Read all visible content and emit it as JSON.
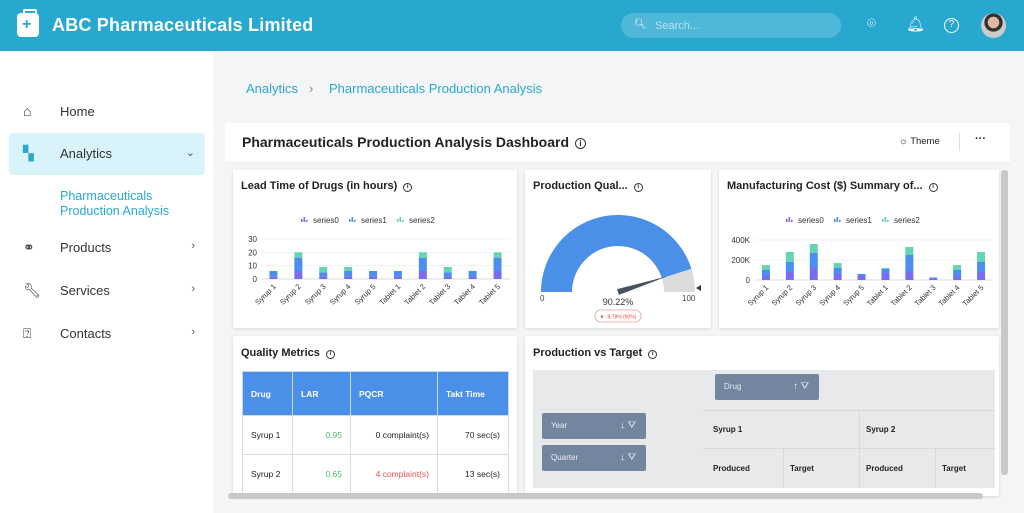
{
  "header": {
    "title": "ABC Pharmaceuticals Limited",
    "search_placeholder": "Search...",
    "icons": [
      "location-icon",
      "bell-icon",
      "help-icon"
    ],
    "brand_color": "#29a8cf"
  },
  "sidebar": {
    "items": [
      {
        "label": "Home",
        "icon": "home-icon"
      },
      {
        "label": "Analytics",
        "icon": "dashboard-icon",
        "active": true,
        "expanded": true,
        "sub": "Pharmaceuticals Production Analysis"
      },
      {
        "label": "Products",
        "icon": "pills-icon"
      },
      {
        "label": "Services",
        "icon": "wrench-icon"
      },
      {
        "label": "Contacts",
        "icon": "question-bubble-icon"
      }
    ]
  },
  "breadcrumb": [
    "Analytics",
    "Pharmaceuticals Production Analysis"
  ],
  "dashboard": {
    "title": "Pharmaceuticals Production Analysis Dashboard",
    "theme_label": "Theme",
    "more_label": "···"
  },
  "series_colors": [
    "#7a6cf0",
    "#4b8ef0",
    "#63d4b6"
  ],
  "chart_data": [
    {
      "type": "bar",
      "stacked": true,
      "title": "Lead Time of Drugs (in hours)",
      "categories": [
        "Syrup 1",
        "Syrup 2",
        "Syrup 3",
        "Syrup 4",
        "Syrup 5",
        "Tablet 1",
        "Tablet 2",
        "Tablet 3",
        "Tablet 4",
        "Tablet 5"
      ],
      "series": [
        {
          "name": "series0",
          "values": [
            2,
            6,
            2,
            2,
            2,
            2,
            6,
            2,
            2,
            6
          ]
        },
        {
          "name": "series1",
          "values": [
            4,
            10,
            3,
            4,
            4,
            4,
            10,
            3,
            4,
            10
          ]
        },
        {
          "name": "series2",
          "values": [
            0,
            4,
            4,
            3,
            0,
            0,
            4,
            4,
            0,
            4
          ]
        }
      ],
      "yticks": [
        "0",
        "10",
        "20",
        "30"
      ],
      "ylim": [
        0,
        30
      ],
      "legend": "top"
    },
    {
      "type": "gauge",
      "title": "Production Qual...",
      "value": 90.22,
      "value_label": "90.22%",
      "min_label": "0",
      "max_label": "100",
      "delta_label": "▼ -9.78% (90%)"
    },
    {
      "type": "bar",
      "stacked": true,
      "title": "Manufacturing Cost ($) Summary of...",
      "categories": [
        "Syrup 1",
        "Syrup 2",
        "Syrup 3",
        "Syrup 4",
        "Syrup 5",
        "Tablet 1",
        "Tablet 2",
        "Tablet 3",
        "Tablet 4",
        "Tablet 5"
      ],
      "series": [
        {
          "name": "series0",
          "values": [
            40000,
            80000,
            120000,
            60000,
            40000,
            70000,
            90000,
            10000,
            40000,
            80000
          ]
        },
        {
          "name": "series1",
          "values": [
            60000,
            100000,
            150000,
            60000,
            20000,
            40000,
            160000,
            15000,
            60000,
            100000
          ]
        },
        {
          "name": "series2",
          "values": [
            50000,
            100000,
            90000,
            50000,
            0,
            10000,
            80000,
            0,
            50000,
            100000
          ]
        }
      ],
      "yticks": [
        "0",
        "200K",
        "400K"
      ],
      "ylim": [
        0,
        400000
      ],
      "legend": "top"
    }
  ],
  "quality": {
    "title": "Quality Metrics",
    "headers": [
      "Drug",
      "LAR",
      "PQCR",
      "Takt Time"
    ],
    "rows": [
      [
        "Syrup 1",
        "0.95",
        "0 complaint(s)",
        "70 sec(s)"
      ],
      [
        "Syrup 2",
        "0.65",
        "4 complaint(s)",
        "13 sec(s)"
      ]
    ]
  },
  "pivot": {
    "title": "Production vs Target",
    "col_field": "Drug",
    "row_fields": [
      "Year",
      "Quarter"
    ],
    "columns": [
      "Syrup 1",
      "Syrup 2"
    ],
    "measures": [
      "Produced",
      "Target"
    ]
  }
}
